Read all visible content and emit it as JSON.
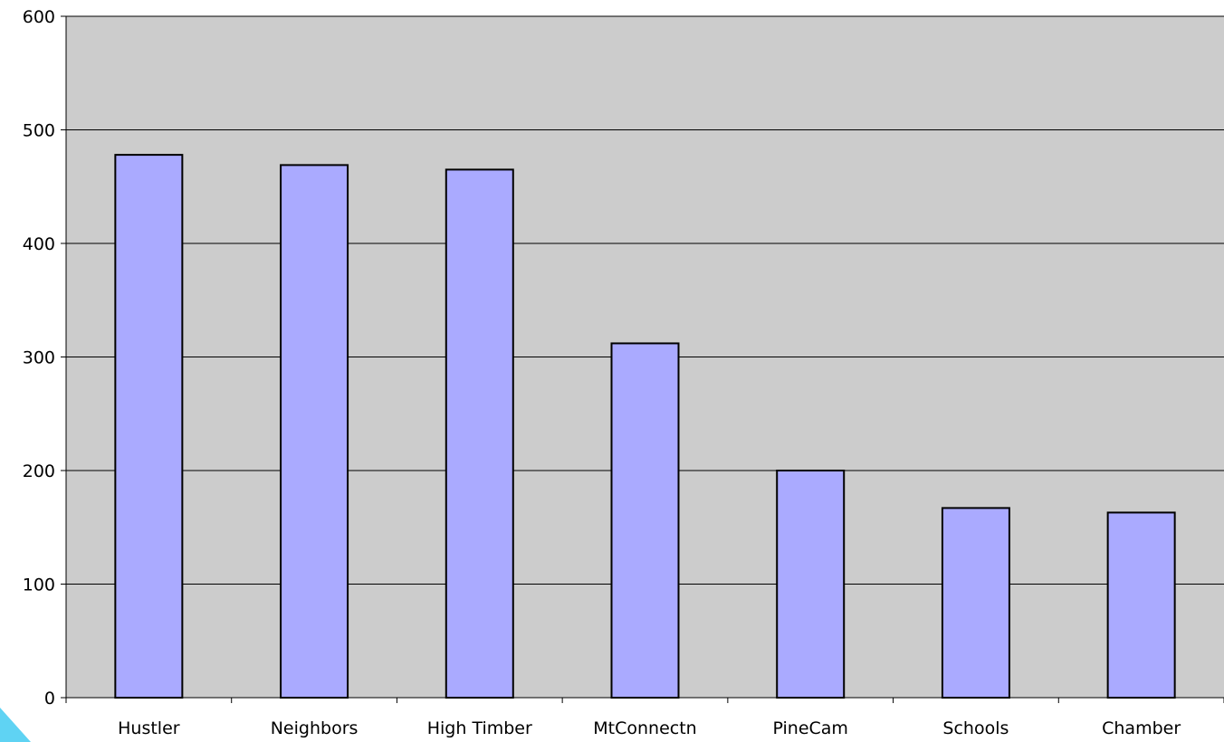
{
  "chart_data": {
    "type": "bar",
    "categories": [
      "Hustler",
      "Neighbors",
      "High Timber",
      "MtConnectn",
      "PineCam",
      "Schools",
      "Chamber"
    ],
    "values": [
      478,
      469,
      465,
      312,
      200,
      167,
      163
    ],
    "title": "",
    "xlabel": "",
    "ylabel": "",
    "ylim": [
      0,
      600
    ],
    "yticks": [
      0,
      100,
      200,
      300,
      400,
      500,
      600
    ],
    "grid": true,
    "legend": "none",
    "colors": {
      "plot_background": "#cccccc",
      "bar_fill": "#aaaaff",
      "bar_stroke": "#000000",
      "gridline": "#000000"
    }
  }
}
